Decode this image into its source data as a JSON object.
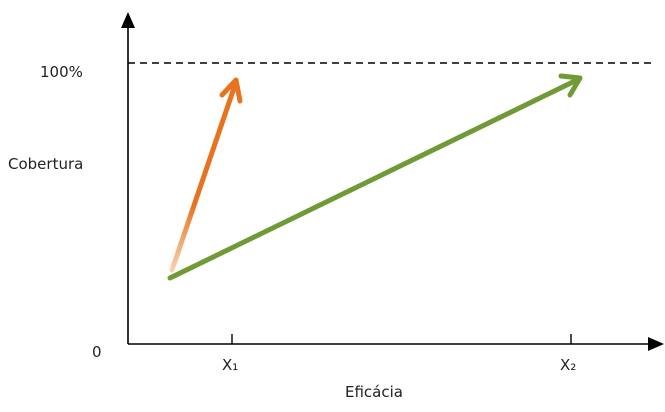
{
  "labels": {
    "y_axis": "Cobertura",
    "x_axis": "Eficácia",
    "y_max": "100%",
    "origin": "0",
    "x1": "X₁",
    "x2": "X₂"
  },
  "colors": {
    "axis": "#000000",
    "reference_line": "#000000",
    "orange_arrow": "#e8731f",
    "green_arrow": "#6f9a36"
  }
}
